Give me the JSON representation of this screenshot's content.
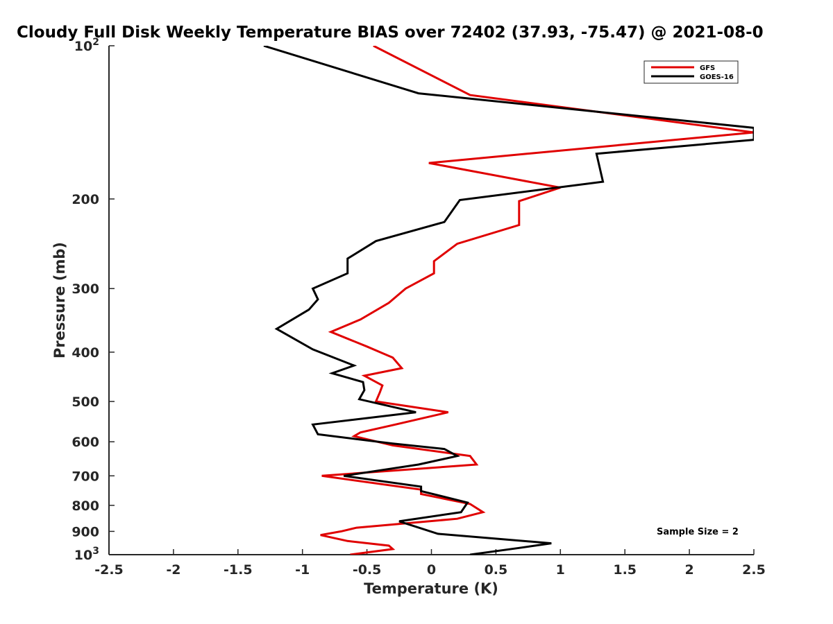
{
  "chart_data": {
    "type": "line",
    "title": "Cloudy Full Disk Weekly Temperature BIAS over 72402 (37.93, -75.47) @ 2021-08-0",
    "xlabel": "Temperature (K)",
    "ylabel": "Pressure (mb)",
    "xlim": [
      -2.5,
      2.5
    ],
    "ylim": [
      100,
      1000
    ],
    "yscale": "log",
    "y_reversed": true,
    "xticks": [
      "-2.5",
      "-2",
      "-1.5",
      "-1",
      "-0.5",
      "0",
      "0.5",
      "1",
      "1.5",
      "2",
      "2.5"
    ],
    "xtick_values": [
      -2.5,
      -2,
      -1.5,
      -1,
      -0.5,
      0,
      0.5,
      1,
      1.5,
      2,
      2.5
    ],
    "yticks": [
      {
        "value": 100,
        "base": "10",
        "exp": "2"
      },
      {
        "value": 200,
        "label": "200"
      },
      {
        "value": 300,
        "label": "300"
      },
      {
        "value": 400,
        "label": "400"
      },
      {
        "value": 500,
        "label": "500"
      },
      {
        "value": 600,
        "label": "600"
      },
      {
        "value": 700,
        "label": "700"
      },
      {
        "value": 800,
        "label": "800"
      },
      {
        "value": 900,
        "label": "900"
      },
      {
        "value": 1000,
        "base": "10",
        "exp": "3"
      }
    ],
    "legend_position": "top-right",
    "grid": false,
    "annotation": "Sample Size = 2",
    "series": [
      {
        "name": "GFS",
        "color": "#e00000",
        "points": [
          [
            -0.45,
            100
          ],
          [
            0.3,
            125
          ],
          [
            2.5,
            148
          ],
          [
            -0.02,
            170
          ],
          [
            1.0,
            190
          ],
          [
            0.68,
            202
          ],
          [
            0.68,
            225
          ],
          [
            0.2,
            245
          ],
          [
            0.02,
            265
          ],
          [
            0.02,
            280
          ],
          [
            -0.2,
            300
          ],
          [
            -0.33,
            320
          ],
          [
            -0.55,
            345
          ],
          [
            -0.78,
            365
          ],
          [
            -0.5,
            390
          ],
          [
            -0.3,
            410
          ],
          [
            -0.23,
            430
          ],
          [
            -0.52,
            445
          ],
          [
            -0.38,
            465
          ],
          [
            -0.4,
            480
          ],
          [
            -0.43,
            500
          ],
          [
            0.13,
            525
          ],
          [
            -0.28,
            555
          ],
          [
            -0.55,
            575
          ],
          [
            -0.6,
            585
          ],
          [
            -0.3,
            610
          ],
          [
            0.3,
            640
          ],
          [
            0.35,
            665
          ],
          [
            -0.85,
            700
          ],
          [
            -0.08,
            745
          ],
          [
            -0.08,
            760
          ],
          [
            0.3,
            795
          ],
          [
            0.4,
            825
          ],
          [
            0.2,
            850
          ],
          [
            -0.58,
            885
          ],
          [
            -0.7,
            900
          ],
          [
            -0.86,
            915
          ],
          [
            -0.65,
            940
          ],
          [
            -0.33,
            960
          ],
          [
            -0.3,
            975
          ],
          [
            -0.63,
            1000
          ]
        ]
      },
      {
        "name": "GOES-16",
        "color": "#000000",
        "points": [
          [
            -1.3,
            100
          ],
          [
            -0.1,
            124
          ],
          [
            2.5,
            145
          ],
          [
            2.5,
            153
          ],
          [
            1.28,
            163
          ],
          [
            1.33,
            185
          ],
          [
            0.22,
            201
          ],
          [
            0.1,
            222
          ],
          [
            -0.43,
            242
          ],
          [
            -0.65,
            262
          ],
          [
            -0.65,
            280
          ],
          [
            -0.92,
            300
          ],
          [
            -0.88,
            315
          ],
          [
            -0.95,
            330
          ],
          [
            -1.2,
            360
          ],
          [
            -0.92,
            395
          ],
          [
            -0.6,
            425
          ],
          [
            -0.77,
            440
          ],
          [
            -0.53,
            458
          ],
          [
            -0.52,
            475
          ],
          [
            -0.56,
            495
          ],
          [
            -0.12,
            525
          ],
          [
            -0.92,
            555
          ],
          [
            -0.88,
            580
          ],
          [
            -0.3,
            605
          ],
          [
            0.1,
            620
          ],
          [
            0.2,
            640
          ],
          [
            -0.1,
            665
          ],
          [
            -0.68,
            700
          ],
          [
            -0.08,
            735
          ],
          [
            -0.08,
            750
          ],
          [
            0.28,
            790
          ],
          [
            0.23,
            825
          ],
          [
            -0.25,
            860
          ],
          [
            0.05,
            910
          ],
          [
            0.93,
            950
          ],
          [
            0.68,
            970
          ],
          [
            0.3,
            1000
          ]
        ]
      }
    ]
  }
}
